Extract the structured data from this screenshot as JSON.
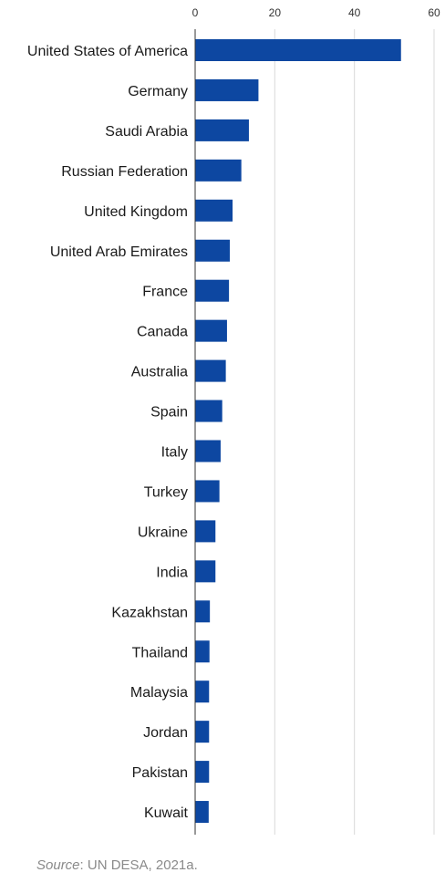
{
  "chart_data": {
    "type": "bar",
    "orientation": "horizontal",
    "title": "",
    "xlabel": "",
    "ylabel": "",
    "xlim": [
      0,
      60
    ],
    "x_ticks": [
      0,
      20,
      40,
      60
    ],
    "x_axis_position": "top",
    "grid": true,
    "bar_color": "#0d47a1",
    "categories": [
      "United States of America",
      "Germany",
      "Saudi Arabia",
      "Russian Federation",
      "United Kingdom",
      "United Arab Emirates",
      "France",
      "Canada",
      "Australia",
      "Spain",
      "Italy",
      "Turkey",
      "Ukraine",
      "India",
      "Kazakhstan",
      "Thailand",
      "Malaysia",
      "Jordan",
      "Pakistan",
      "Kuwait"
    ],
    "values": [
      51.7,
      15.9,
      13.5,
      11.6,
      9.4,
      8.7,
      8.5,
      8.0,
      7.7,
      6.8,
      6.4,
      6.1,
      5.1,
      5.1,
      3.7,
      3.6,
      3.5,
      3.5,
      3.5,
      3.4
    ]
  },
  "source": {
    "label": "Source",
    "text": ": UN DESA, 2021a."
  }
}
